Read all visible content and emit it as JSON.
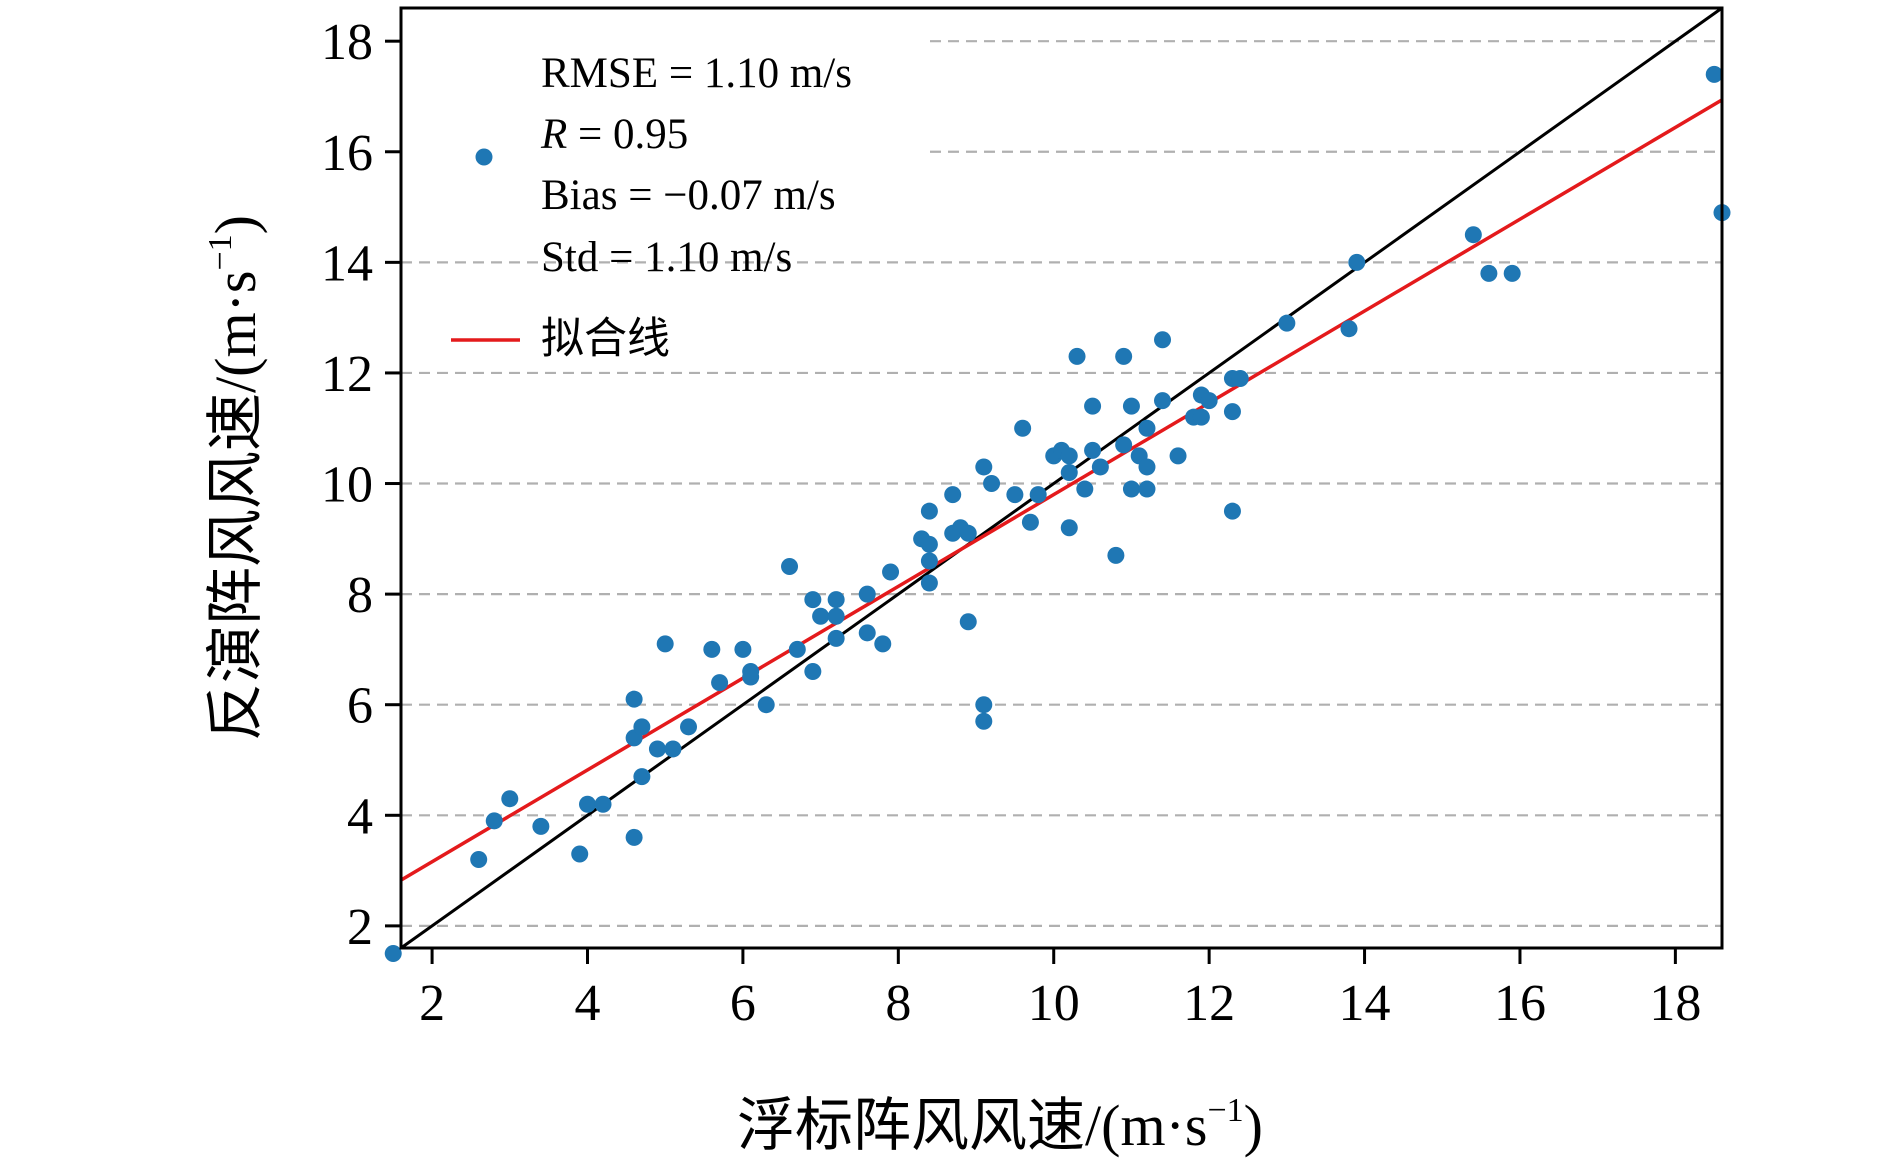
{
  "chart_data": {
    "type": "scatter",
    "xlabel": "浮标阵风风速/(m·s",
    "xlabel_sup": "−1",
    "xlabel_end": ")",
    "ylabel": "反演阵风风速/(m·s",
    "ylabel_sup": "−1",
    "ylabel_end": ")",
    "xlim": [
      1.6,
      18.6
    ],
    "ylim": [
      1.6,
      18.6
    ],
    "xticks": [
      2,
      4,
      6,
      8,
      10,
      12,
      14,
      16,
      18
    ],
    "yticks": [
      2,
      4,
      6,
      8,
      10,
      12,
      14,
      16,
      18
    ],
    "grid": "horizontal-dashed",
    "legend_position": "top-left",
    "stats": {
      "rmse": "RMSE = 1.10 m/s",
      "r_label": "R",
      "r_value": " = 0.95",
      "bias": "Bias = −0.07 m/s",
      "std": "Std = 1.10 m/s"
    },
    "fit_label": "拟合线",
    "colors": {
      "points": "#1f77b4",
      "fit": "#e41a1c",
      "identity": "#000000",
      "grid": "#b0b0b0"
    },
    "fit_line": {
      "slope": 0.83,
      "intercept": 1.5
    },
    "identity_line": {
      "slope": 1,
      "intercept": 0
    },
    "points": [
      [
        1.5,
        1.5
      ],
      [
        2.6,
        3.2
      ],
      [
        2.8,
        3.9
      ],
      [
        3.0,
        4.3
      ],
      [
        3.4,
        3.8
      ],
      [
        3.9,
        3.3
      ],
      [
        4.0,
        4.2
      ],
      [
        4.2,
        4.2
      ],
      [
        4.6,
        3.6
      ],
      [
        4.7,
        4.7
      ],
      [
        4.6,
        5.4
      ],
      [
        4.7,
        5.6
      ],
      [
        4.6,
        6.1
      ],
      [
        4.9,
        5.2
      ],
      [
        5.1,
        5.2
      ],
      [
        5.0,
        7.1
      ],
      [
        5.3,
        5.6
      ],
      [
        5.6,
        7.0
      ],
      [
        5.7,
        6.4
      ],
      [
        6.0,
        7.0
      ],
      [
        6.1,
        6.5
      ],
      [
        6.1,
        6.6
      ],
      [
        6.3,
        6.0
      ],
      [
        6.6,
        8.5
      ],
      [
        6.7,
        7.0
      ],
      [
        6.9,
        7.9
      ],
      [
        6.9,
        6.6
      ],
      [
        7.0,
        7.6
      ],
      [
        7.2,
        7.9
      ],
      [
        7.2,
        7.6
      ],
      [
        7.2,
        7.2
      ],
      [
        7.6,
        8.0
      ],
      [
        7.6,
        7.3
      ],
      [
        7.8,
        7.1
      ],
      [
        7.9,
        8.4
      ],
      [
        8.3,
        9.0
      ],
      [
        8.4,
        8.6
      ],
      [
        8.4,
        8.2
      ],
      [
        8.4,
        8.9
      ],
      [
        8.4,
        9.5
      ],
      [
        8.7,
        9.1
      ],
      [
        8.7,
        9.8
      ],
      [
        8.8,
        9.2
      ],
      [
        8.9,
        9.1
      ],
      [
        8.9,
        7.5
      ],
      [
        9.1,
        10.3
      ],
      [
        9.1,
        6.0
      ],
      [
        9.1,
        5.7
      ],
      [
        9.2,
        10.0
      ],
      [
        9.5,
        9.8
      ],
      [
        9.6,
        11.0
      ],
      [
        9.7,
        9.3
      ],
      [
        9.8,
        9.8
      ],
      [
        10.0,
        10.5
      ],
      [
        10.1,
        10.6
      ],
      [
        10.2,
        10.2
      ],
      [
        10.2,
        10.5
      ],
      [
        10.2,
        9.2
      ],
      [
        10.3,
        12.3
      ],
      [
        10.4,
        9.9
      ],
      [
        10.5,
        11.4
      ],
      [
        10.5,
        10.6
      ],
      [
        10.6,
        10.3
      ],
      [
        10.8,
        8.7
      ],
      [
        10.9,
        10.7
      ],
      [
        10.9,
        12.3
      ],
      [
        11.0,
        9.9
      ],
      [
        11.0,
        11.4
      ],
      [
        11.1,
        10.5
      ],
      [
        11.2,
        9.9
      ],
      [
        11.2,
        10.3
      ],
      [
        11.2,
        11.0
      ],
      [
        11.4,
        11.5
      ],
      [
        11.4,
        12.6
      ],
      [
        11.6,
        10.5
      ],
      [
        11.8,
        11.2
      ],
      [
        11.9,
        11.6
      ],
      [
        11.9,
        11.2
      ],
      [
        12.0,
        11.5
      ],
      [
        12.3,
        11.9
      ],
      [
        12.3,
        11.3
      ],
      [
        12.3,
        9.5
      ],
      [
        12.4,
        11.9
      ],
      [
        13.0,
        12.9
      ],
      [
        13.8,
        12.8
      ],
      [
        13.9,
        14.0
      ],
      [
        15.4,
        14.5
      ],
      [
        15.6,
        13.8
      ],
      [
        15.9,
        13.8
      ],
      [
        18.5,
        17.4
      ],
      [
        18.6,
        14.9
      ]
    ]
  }
}
